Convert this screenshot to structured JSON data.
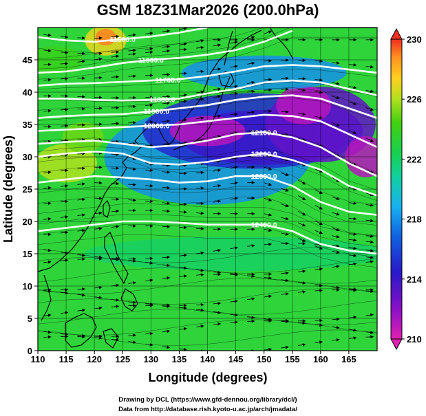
{
  "title": "GSM 18Z31Mar2026 (200.0hPa)",
  "x_axis_label": "Longitude (degrees)",
  "y_axis_label": "Latitude  (degrees)",
  "x_ticks": [
    "110",
    "115",
    "120",
    "125",
    "130",
    "135",
    "140",
    "145",
    "150",
    "155",
    "160",
    "165"
  ],
  "y_ticks": [
    "0",
    "5",
    "10",
    "15",
    "20",
    "25",
    "30",
    "35",
    "40",
    "45"
  ],
  "colorbar_ticks": [
    "210",
    "214",
    "218",
    "222",
    "226",
    "230"
  ],
  "contour_labels": [
    "11500.0",
    "11600.0",
    "11700.0",
    "11800.0",
    "11900.0",
    "12000.0",
    "12100.0",
    "12200.0",
    "12300.0",
    "12400.0"
  ],
  "credits": {
    "line1": "Drawing by DCL (https://www.gfd-dennou.org/library/dcl/)",
    "line2": "Data from http://database.rish.kyoto-u.ac.jp/arch/jmadata/"
  },
  "chart_data": {
    "type": "heatmap",
    "title": "GSM 18Z31Mar2026 (200.0hPa)",
    "xlabel": "Longitude (degrees)",
    "ylabel": "Latitude  (degrees)",
    "xlim": [
      110,
      170
    ],
    "ylim": [
      0,
      50
    ],
    "colorbar": {
      "min": 210,
      "max": 230,
      "ticks": [
        210,
        214,
        218,
        222,
        226,
        230
      ],
      "extend": "both"
    },
    "overlays": [
      "geopotential height contours",
      "wind streamlines",
      "coastlines"
    ],
    "contours": [
      {
        "value": 11500.0,
        "label": "11500.0",
        "lat": [
          48.5,
          48.0,
          47.8,
          48.2,
          48.6,
          49.2,
          50.0
        ],
        "lon": [
          110,
          115,
          120,
          125,
          130,
          135,
          140
        ]
      },
      {
        "value": 11600.0,
        "label": "11600.0",
        "lat": [
          43.0,
          43.2,
          43.8,
          44.5,
          45.0,
          45.3,
          45.8,
          46.5,
          47.8,
          49.5
        ],
        "lon": [
          110,
          115,
          120,
          125,
          130,
          135,
          140,
          145,
          150,
          155
        ]
      },
      {
        "value": 11700.0,
        "label": "11700.0",
        "lat": [
          41.0,
          41.3,
          41.4,
          41.6,
          41.8,
          42.0,
          42.5,
          43.2,
          44.0,
          44.2,
          44.0,
          43.5,
          43.0
        ],
        "lon": [
          110,
          115,
          120,
          125,
          130,
          135,
          140,
          145,
          150,
          155,
          160,
          165,
          170
        ]
      },
      {
        "value": 11800.0,
        "label": "11800.0",
        "lat": [
          39.0,
          39.0,
          38.8,
          38.7,
          38.8,
          39.0,
          39.8,
          40.5,
          41.5,
          41.8,
          41.5,
          40.5,
          39.5
        ],
        "lon": [
          110,
          115,
          120,
          125,
          130,
          135,
          140,
          145,
          150,
          155,
          160,
          165,
          170
        ]
      },
      {
        "value": 11900.0,
        "label": "11900.0",
        "lat": [
          36.0,
          36.3,
          36.5,
          36.6,
          37.0,
          37.5,
          38.0,
          38.8,
          39.3,
          39.5,
          39.0,
          37.5,
          36.0
        ],
        "lon": [
          110,
          115,
          120,
          125,
          130,
          135,
          140,
          145,
          150,
          155,
          160,
          165,
          170
        ]
      },
      {
        "value": 12000.0,
        "label": "12000.0",
        "lat": [
          34.0,
          34.2,
          34.4,
          34.6,
          34.8,
          35.0,
          35.5,
          36.0,
          36.5,
          36.3,
          35.5,
          33.5,
          31.5
        ],
        "lon": [
          110,
          115,
          120,
          125,
          130,
          135,
          140,
          145,
          150,
          155,
          160,
          165,
          170
        ]
      },
      {
        "value": 12100.0,
        "label": "12100.0",
        "lat": [
          32.0,
          32.3,
          32.5,
          32.0,
          31.5,
          31.8,
          32.5,
          33.5,
          33.8,
          33.0,
          31.5,
          29.0,
          27.0
        ],
        "lon": [
          110,
          115,
          120,
          125,
          130,
          135,
          140,
          145,
          150,
          155,
          160,
          165,
          170
        ]
      },
      {
        "value": 12200.0,
        "label": "12200.0",
        "lat": [
          30.0,
          30.5,
          30.8,
          30.5,
          29.0,
          28.8,
          29.2,
          30.0,
          30.5,
          29.5,
          28.0,
          25.5,
          24.0
        ],
        "lon": [
          110,
          115,
          120,
          125,
          130,
          135,
          140,
          145,
          150,
          155,
          160,
          165,
          170
        ]
      },
      {
        "value": 12300.0,
        "label": "12300.0",
        "lat": [
          26.0,
          26.5,
          27.0,
          26.8,
          26.5,
          26.0,
          26.2,
          27.0,
          27.0,
          25.5,
          23.0,
          21.5,
          21.0
        ],
        "lon": [
          110,
          115,
          120,
          125,
          130,
          135,
          140,
          145,
          150,
          155,
          160,
          165,
          170
        ]
      },
      {
        "value": 12400.0,
        "label": "12400.0",
        "lat": [
          18.5,
          19.0,
          19.5,
          20.0,
          20.0,
          19.8,
          19.5,
          19.5,
          19.5,
          18.5,
          16.5,
          15.5,
          15.0
        ],
        "lon": [
          110,
          115,
          120,
          125,
          130,
          135,
          140,
          145,
          150,
          155,
          160,
          165,
          170
        ]
      }
    ],
    "temperature_features": [
      {
        "description": "warm maximum",
        "lon": 122,
        "lat": 48,
        "value": 229
      },
      {
        "description": "warm patch",
        "lon": 115,
        "lat": 29,
        "value": 225
      },
      {
        "description": "cold minimum",
        "lon": 140,
        "lat": 34,
        "value": 211
      },
      {
        "description": "cold minimum",
        "lon": 157,
        "lat": 38,
        "value": 211
      },
      {
        "description": "cold trough",
        "lon": 168,
        "lat": 30,
        "value": 211
      },
      {
        "description": "cold band",
        "lon": 150,
        "lat": 32,
        "value": 214
      },
      {
        "description": "tropical background",
        "lon": 140,
        "lat": 10,
        "value": 223
      }
    ]
  }
}
